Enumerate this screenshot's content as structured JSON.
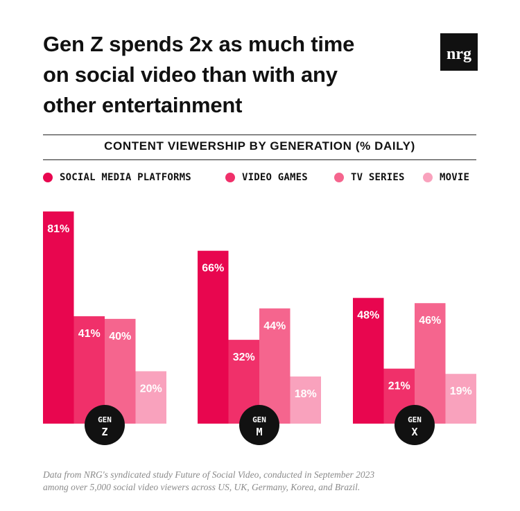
{
  "header": {
    "title_lines": [
      "Gen Z spends 2x as much time",
      "on social video than with any",
      "other entertainment"
    ],
    "logo_text": "nrg"
  },
  "chart_data": {
    "type": "bar",
    "title": "CONTENT VIEWERSHIP BY GENERATION (% DAILY)",
    "categories": [
      {
        "line1": "GEN",
        "line2": "Z"
      },
      {
        "line1": "GEN",
        "line2": "M"
      },
      {
        "line1": "GEN",
        "line2": "X"
      }
    ],
    "series": [
      {
        "name": "SOCIAL MEDIA PLATFORMS",
        "color": "#E8064F",
        "values": [
          81,
          66,
          48
        ]
      },
      {
        "name": "VIDEO GAMES",
        "color": "#F0306A",
        "values": [
          41,
          32,
          21
        ]
      },
      {
        "name": "TV SERIES",
        "color": "#F5658E",
        "values": [
          40,
          44,
          46
        ]
      },
      {
        "name": "MOVIE",
        "color": "#F9A2BD",
        "values": [
          20,
          18,
          19
        ]
      }
    ],
    "value_suffix": "%",
    "ylim": [
      0,
      81
    ],
    "grid": false,
    "legend_position": "top"
  },
  "footnote": {
    "lines": [
      "Data from NRG's syndicated study Future of Social Video, conducted in September 2023",
      "among over 5,000 social video viewers across US, UK, Germany, Korea, and Brazil."
    ]
  }
}
